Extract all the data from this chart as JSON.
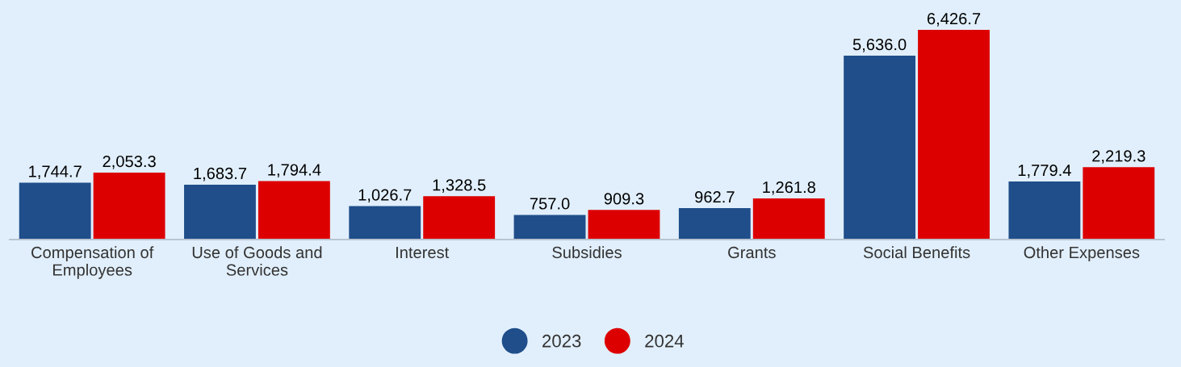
{
  "chart_data": {
    "type": "bar",
    "categories": [
      "Compensation of Employees",
      "Use of Goods and Services",
      "Interest",
      "Subsidies",
      "Grants",
      "Social Benefits",
      "Other Expenses"
    ],
    "series": [
      {
        "name": "2023",
        "color": "#1f4e8a",
        "values": [
          1744.7,
          1683.7,
          1026.7,
          757.0,
          962.7,
          5636.0,
          1779.4
        ],
        "value_labels": [
          "1,744.7",
          "1,683.7",
          "1,026.7",
          "757.0",
          "962.7",
          "5,636.0",
          "1,779.4"
        ]
      },
      {
        "name": "2024",
        "color": "#dd0000",
        "values": [
          2053.3,
          1794.4,
          1328.5,
          909.3,
          1261.8,
          6426.7,
          2219.3
        ],
        "value_labels": [
          "2,053.3",
          "1,794.4",
          "1,328.5",
          "909.3",
          "1,261.8",
          "6,426.7",
          "2,219.3"
        ]
      }
    ],
    "grid": false,
    "legend": "bottom"
  }
}
